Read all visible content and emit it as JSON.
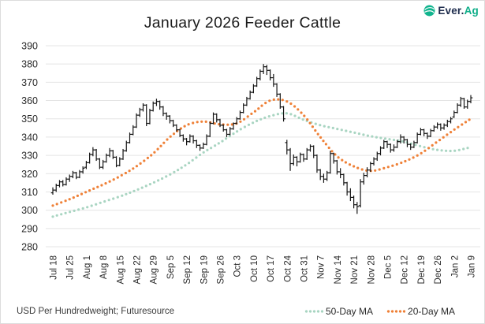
{
  "header": {
    "title": "January 2026 Feeder Cattle",
    "logo_prefix": "Ever.",
    "logo_suffix": "Ag"
  },
  "footer": {
    "source_note": "USD Per Hundredweight; Futuresource"
  },
  "legend": {
    "ma50_label": "50-Day MA",
    "ma20_label": "20-Day MA"
  },
  "chart_data": {
    "type": "bar",
    "subtype": "ohlc-price-bars",
    "title": "January 2026 Feeder Cattle",
    "ylabel": "USD Per Hundredweight",
    "source": "Futuresource",
    "grid": true,
    "legend_position": "bottom-right",
    "ylim": [
      280,
      390
    ],
    "y_ticks": [
      390,
      380,
      370,
      360,
      350,
      340,
      330,
      320,
      310,
      300,
      290,
      280
    ],
    "x_tick_labels": [
      "Jul 18",
      "Jul 25",
      "Aug 1",
      "Aug 8",
      "Aug 15",
      "Aug 22",
      "Aug 29",
      "Sep 5",
      "Sep 12",
      "Sep 19",
      "Sep 26",
      "Oct 3",
      "Oct 10",
      "Oct 17",
      "Oct 24",
      "Oct 31",
      "Nov 7",
      "Nov 14",
      "Nov 21",
      "Nov 28",
      "Dec 5",
      "Dec 12",
      "Dec 19",
      "Dec 26",
      "Jan 2",
      "Jan 9"
    ],
    "bars_per_week": 5,
    "frequency": "daily",
    "bars_format": [
      "open",
      "high",
      "low",
      "close"
    ],
    "bars": [
      [
        309.5,
        312.5,
        308.5,
        311
      ],
      [
        311,
        314.5,
        310,
        313.5
      ],
      [
        313.5,
        316.5,
        312.5,
        315.5
      ],
      [
        315.5,
        316.5,
        313,
        314
      ],
      [
        314,
        318,
        313.5,
        317
      ],
      [
        317,
        319.5,
        315.5,
        318.5
      ],
      [
        318.5,
        321.5,
        317.5,
        320.5
      ],
      [
        320.5,
        321,
        317,
        318
      ],
      [
        318,
        322,
        317.5,
        321
      ],
      [
        321,
        324,
        320,
        323
      ],
      [
        323.5,
        327,
        322.5,
        326
      ],
      [
        326,
        331.5,
        325.5,
        330.5
      ],
      [
        330.5,
        334.5,
        329.5,
        333
      ],
      [
        333,
        333.5,
        327,
        328
      ],
      [
        328,
        328.5,
        322.5,
        323.5
      ],
      [
        323.5,
        327.5,
        322.5,
        326.5
      ],
      [
        326.5,
        331,
        326,
        330
      ],
      [
        330,
        334,
        329,
        332.5
      ],
      [
        332.5,
        333,
        328,
        329
      ],
      [
        329,
        329.5,
        323.5,
        324.5
      ],
      [
        324.5,
        329,
        324,
        328
      ],
      [
        328,
        333.5,
        327.5,
        332.5
      ],
      [
        332.5,
        338,
        332,
        337
      ],
      [
        337,
        342.5,
        336.5,
        341.5
      ],
      [
        341.5,
        346.5,
        341,
        345.5
      ],
      [
        345.5,
        353,
        345,
        352
      ],
      [
        352,
        356,
        351,
        355
      ],
      [
        355,
        358.5,
        354,
        357.5
      ],
      [
        357.5,
        358,
        346,
        347.5
      ],
      [
        347.5,
        355.5,
        347,
        354.5
      ],
      [
        354.5,
        359.5,
        354,
        358.5
      ],
      [
        358.5,
        361,
        357,
        359.5
      ],
      [
        359.5,
        360,
        355,
        356.5
      ],
      [
        356.5,
        357,
        351.5,
        353
      ],
      [
        353,
        353.5,
        349.5,
        351.5
      ],
      [
        351.5,
        352,
        347.5,
        349
      ],
      [
        349,
        349.5,
        345.5,
        346.5
      ],
      [
        346.5,
        347,
        343,
        344
      ],
      [
        344,
        344.5,
        340,
        341
      ],
      [
        341,
        341.5,
        337.5,
        339
      ],
      [
        339,
        339.5,
        335.5,
        337.5
      ],
      [
        337.5,
        341.5,
        337,
        340.5
      ],
      [
        340.5,
        341,
        336.5,
        338
      ],
      [
        338,
        338.5,
        334,
        335.5
      ],
      [
        335.5,
        336,
        332.5,
        334
      ],
      [
        334,
        337,
        333.5,
        336
      ],
      [
        336,
        341.5,
        335.5,
        340.5
      ],
      [
        340.5,
        348.5,
        340,
        347.5
      ],
      [
        347.5,
        353.5,
        347,
        352.5
      ],
      [
        352.5,
        353,
        348,
        349.5
      ],
      [
        349.5,
        350,
        345.5,
        346.5
      ],
      [
        346.5,
        347,
        343,
        344
      ],
      [
        344,
        344.5,
        340,
        341.5
      ],
      [
        341.5,
        345.5,
        341,
        344.5
      ],
      [
        344.5,
        348,
        344,
        347.5
      ],
      [
        347.5,
        351,
        347,
        350
      ],
      [
        350,
        354.5,
        349.5,
        353.5
      ],
      [
        353.5,
        358.5,
        353,
        357.5
      ],
      [
        357.5,
        362,
        357,
        361
      ],
      [
        361,
        365.5,
        360.5,
        364.5
      ],
      [
        364.5,
        369,
        364,
        368
      ],
      [
        368,
        373,
        367.5,
        372
      ],
      [
        372,
        377,
        371,
        376
      ],
      [
        376,
        380,
        374.5,
        378.5
      ],
      [
        378.5,
        379.5,
        374,
        376.5
      ],
      [
        376.5,
        377,
        371,
        372.5
      ],
      [
        372.5,
        374.5,
        367.5,
        369
      ],
      [
        369,
        369.5,
        362,
        363.5
      ],
      [
        363.5,
        364,
        355.5,
        356.5
      ],
      [
        356.5,
        357,
        348.5,
        350
      ],
      [
        337,
        338.5,
        330.5,
        333
      ],
      [
        333,
        334,
        321.5,
        325.5
      ],
      [
        325.5,
        330.5,
        324.5,
        329
      ],
      [
        329,
        329.5,
        324,
        326.5
      ],
      [
        326.5,
        331.5,
        326,
        330.5
      ],
      [
        330.5,
        331,
        326.5,
        328
      ],
      [
        328,
        334,
        327.5,
        333
      ],
      [
        333,
        336,
        332,
        335
      ],
      [
        335,
        335.5,
        328.5,
        330
      ],
      [
        330,
        330.5,
        320.5,
        322
      ],
      [
        322,
        322.5,
        316.5,
        318.5
      ],
      [
        318.5,
        320,
        315,
        317
      ],
      [
        317,
        321.5,
        316,
        320.5
      ],
      [
        320.5,
        332.5,
        320,
        331
      ],
      [
        331,
        331.5,
        325.5,
        327
      ],
      [
        327,
        327.5,
        319.5,
        321
      ],
      [
        321,
        323,
        317.5,
        319.5
      ],
      [
        319.5,
        320,
        313.5,
        315
      ],
      [
        315,
        315.5,
        308,
        310
      ],
      [
        310,
        312,
        305,
        307
      ],
      [
        307,
        308,
        301,
        303
      ],
      [
        303,
        304.5,
        298,
        302
      ],
      [
        302.5,
        317,
        301.5,
        315.5
      ],
      [
        315.5,
        320.5,
        314,
        319
      ],
      [
        319,
        323.5,
        318,
        322
      ],
      [
        322,
        326.5,
        321,
        325.5
      ],
      [
        325.5,
        329,
        324.5,
        328
      ],
      [
        328,
        332,
        327,
        331
      ],
      [
        331,
        335,
        330,
        334
      ],
      [
        334,
        338.5,
        333.5,
        337.5
      ],
      [
        337.5,
        338,
        334,
        336
      ],
      [
        336,
        336.5,
        331.5,
        333
      ],
      [
        333,
        336,
        332,
        334.5
      ],
      [
        334.5,
        338.5,
        334,
        337.5
      ],
      [
        337.5,
        341.5,
        336.5,
        340
      ],
      [
        340,
        340.5,
        336.5,
        338.5
      ],
      [
        338.5,
        339,
        334.5,
        336
      ],
      [
        336,
        336.5,
        333,
        334.5
      ],
      [
        334.5,
        338,
        334,
        337
      ],
      [
        337,
        342.5,
        336.5,
        341.5
      ],
      [
        341.5,
        345,
        341,
        344
      ],
      [
        344,
        344.5,
        340.5,
        342
      ],
      [
        342,
        342.5,
        339,
        340.5
      ],
      [
        340.5,
        344.5,
        340,
        343.5
      ],
      [
        343.5,
        346.5,
        343,
        345.5
      ],
      [
        345.5,
        348,
        344.5,
        347
      ],
      [
        347,
        347.5,
        343.5,
        345
      ],
      [
        345,
        347.5,
        344,
        346.5
      ],
      [
        346.5,
        349.5,
        345.5,
        348.5
      ],
      [
        348.5,
        351,
        347.5,
        350
      ],
      [
        351,
        354.5,
        350.5,
        353.5
      ],
      [
        353.5,
        358.5,
        353,
        357.5
      ],
      [
        357.5,
        362,
        356.5,
        361
      ],
      [
        361,
        361.5,
        355.5,
        356.5
      ],
      [
        356.5,
        360.5,
        355.5,
        359.5
      ],
      [
        359.5,
        363,
        358.5,
        361.5
      ]
    ],
    "series": [
      {
        "name": "50-Day MA",
        "key": "ma50",
        "style": "dotted",
        "color": "#a9d5c2",
        "weekly_values": [
          296.5,
          299,
          301.5,
          304.5,
          307.5,
          311,
          315,
          319.5,
          325,
          331.5,
          337,
          343,
          348,
          351.5,
          353,
          349.5,
          346.5,
          344.5,
          342.5,
          340.5,
          339,
          337.5,
          335,
          333,
          332.5,
          334.5
        ]
      },
      {
        "name": "20-Day MA",
        "key": "ma20",
        "style": "dotted",
        "color": "#ef8138",
        "weekly_values": [
          302.5,
          306,
          310,
          314,
          318.5,
          324,
          331,
          340,
          346.5,
          348.5,
          347,
          347.5,
          353.5,
          360,
          359.5,
          352,
          340,
          329.5,
          324,
          321.5,
          323.5,
          326.5,
          331,
          337.5,
          344,
          350
        ]
      }
    ],
    "colors": {
      "bars": "#161616",
      "grid": "#e4e4e4",
      "axis_text": "#2b2b2b",
      "ma50": "#a9d5c2",
      "ma20": "#ef8138",
      "logo_navy": "#1e2c4d",
      "logo_teal": "#0fae89"
    }
  }
}
